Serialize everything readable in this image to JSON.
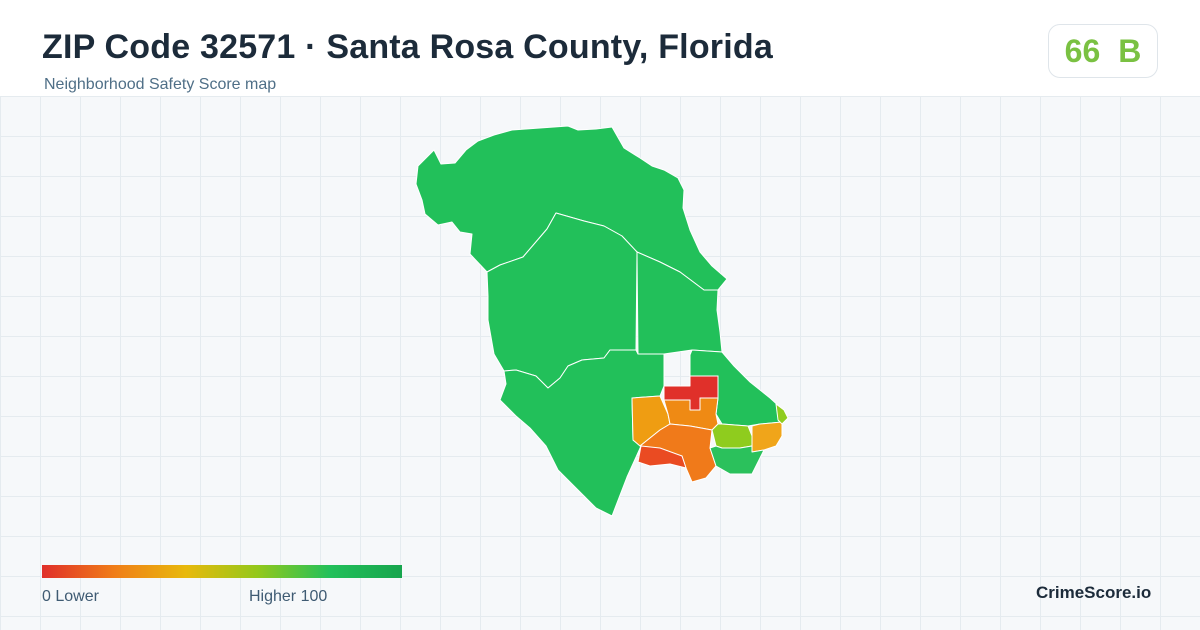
{
  "header": {
    "title": "ZIP Code 32571 · Santa Rosa County, Florida",
    "subtitle": "Neighborhood Safety Score map"
  },
  "score": {
    "value": "66",
    "grade": "B",
    "color": "#7ac142"
  },
  "map": {
    "zip": "32571",
    "county": "Santa Rosa County",
    "state": "Florida",
    "regions": [
      {
        "id": "north",
        "level": "highest",
        "color": "#22c05a"
      },
      {
        "id": "west-central",
        "level": "highest",
        "color": "#22c05a"
      },
      {
        "id": "central",
        "level": "highest",
        "color": "#22c05a"
      },
      {
        "id": "east-strip",
        "level": "highest",
        "color": "#22c05a"
      },
      {
        "id": "southwest",
        "level": "highest",
        "color": "#22c05a"
      },
      {
        "id": "red-block-north",
        "level": "low",
        "color": "#e0302a"
      },
      {
        "id": "orange-west",
        "level": "mid-low",
        "color": "#ef9d12"
      },
      {
        "id": "orange-center",
        "level": "mid-low",
        "color": "#ef8a14"
      },
      {
        "id": "orange-south",
        "level": "low-mid",
        "color": "#f07a1a"
      },
      {
        "id": "red-south",
        "level": "low",
        "color": "#ea4b22"
      },
      {
        "id": "lime-east",
        "level": "mid-high",
        "color": "#8fcc1e"
      },
      {
        "id": "orange-far-east",
        "level": "mid",
        "color": "#f0a51a"
      },
      {
        "id": "green-southeast",
        "level": "high",
        "color": "#2bc15c"
      }
    ]
  },
  "legend": {
    "min_label": "0  Lower",
    "max_label": "Higher  100",
    "gradient": [
      "#e02f2a",
      "#f07d18",
      "#e8b90c",
      "#93c81b",
      "#22c05a",
      "#17a54d"
    ]
  },
  "brand": {
    "name": "CrimeScore.io"
  }
}
